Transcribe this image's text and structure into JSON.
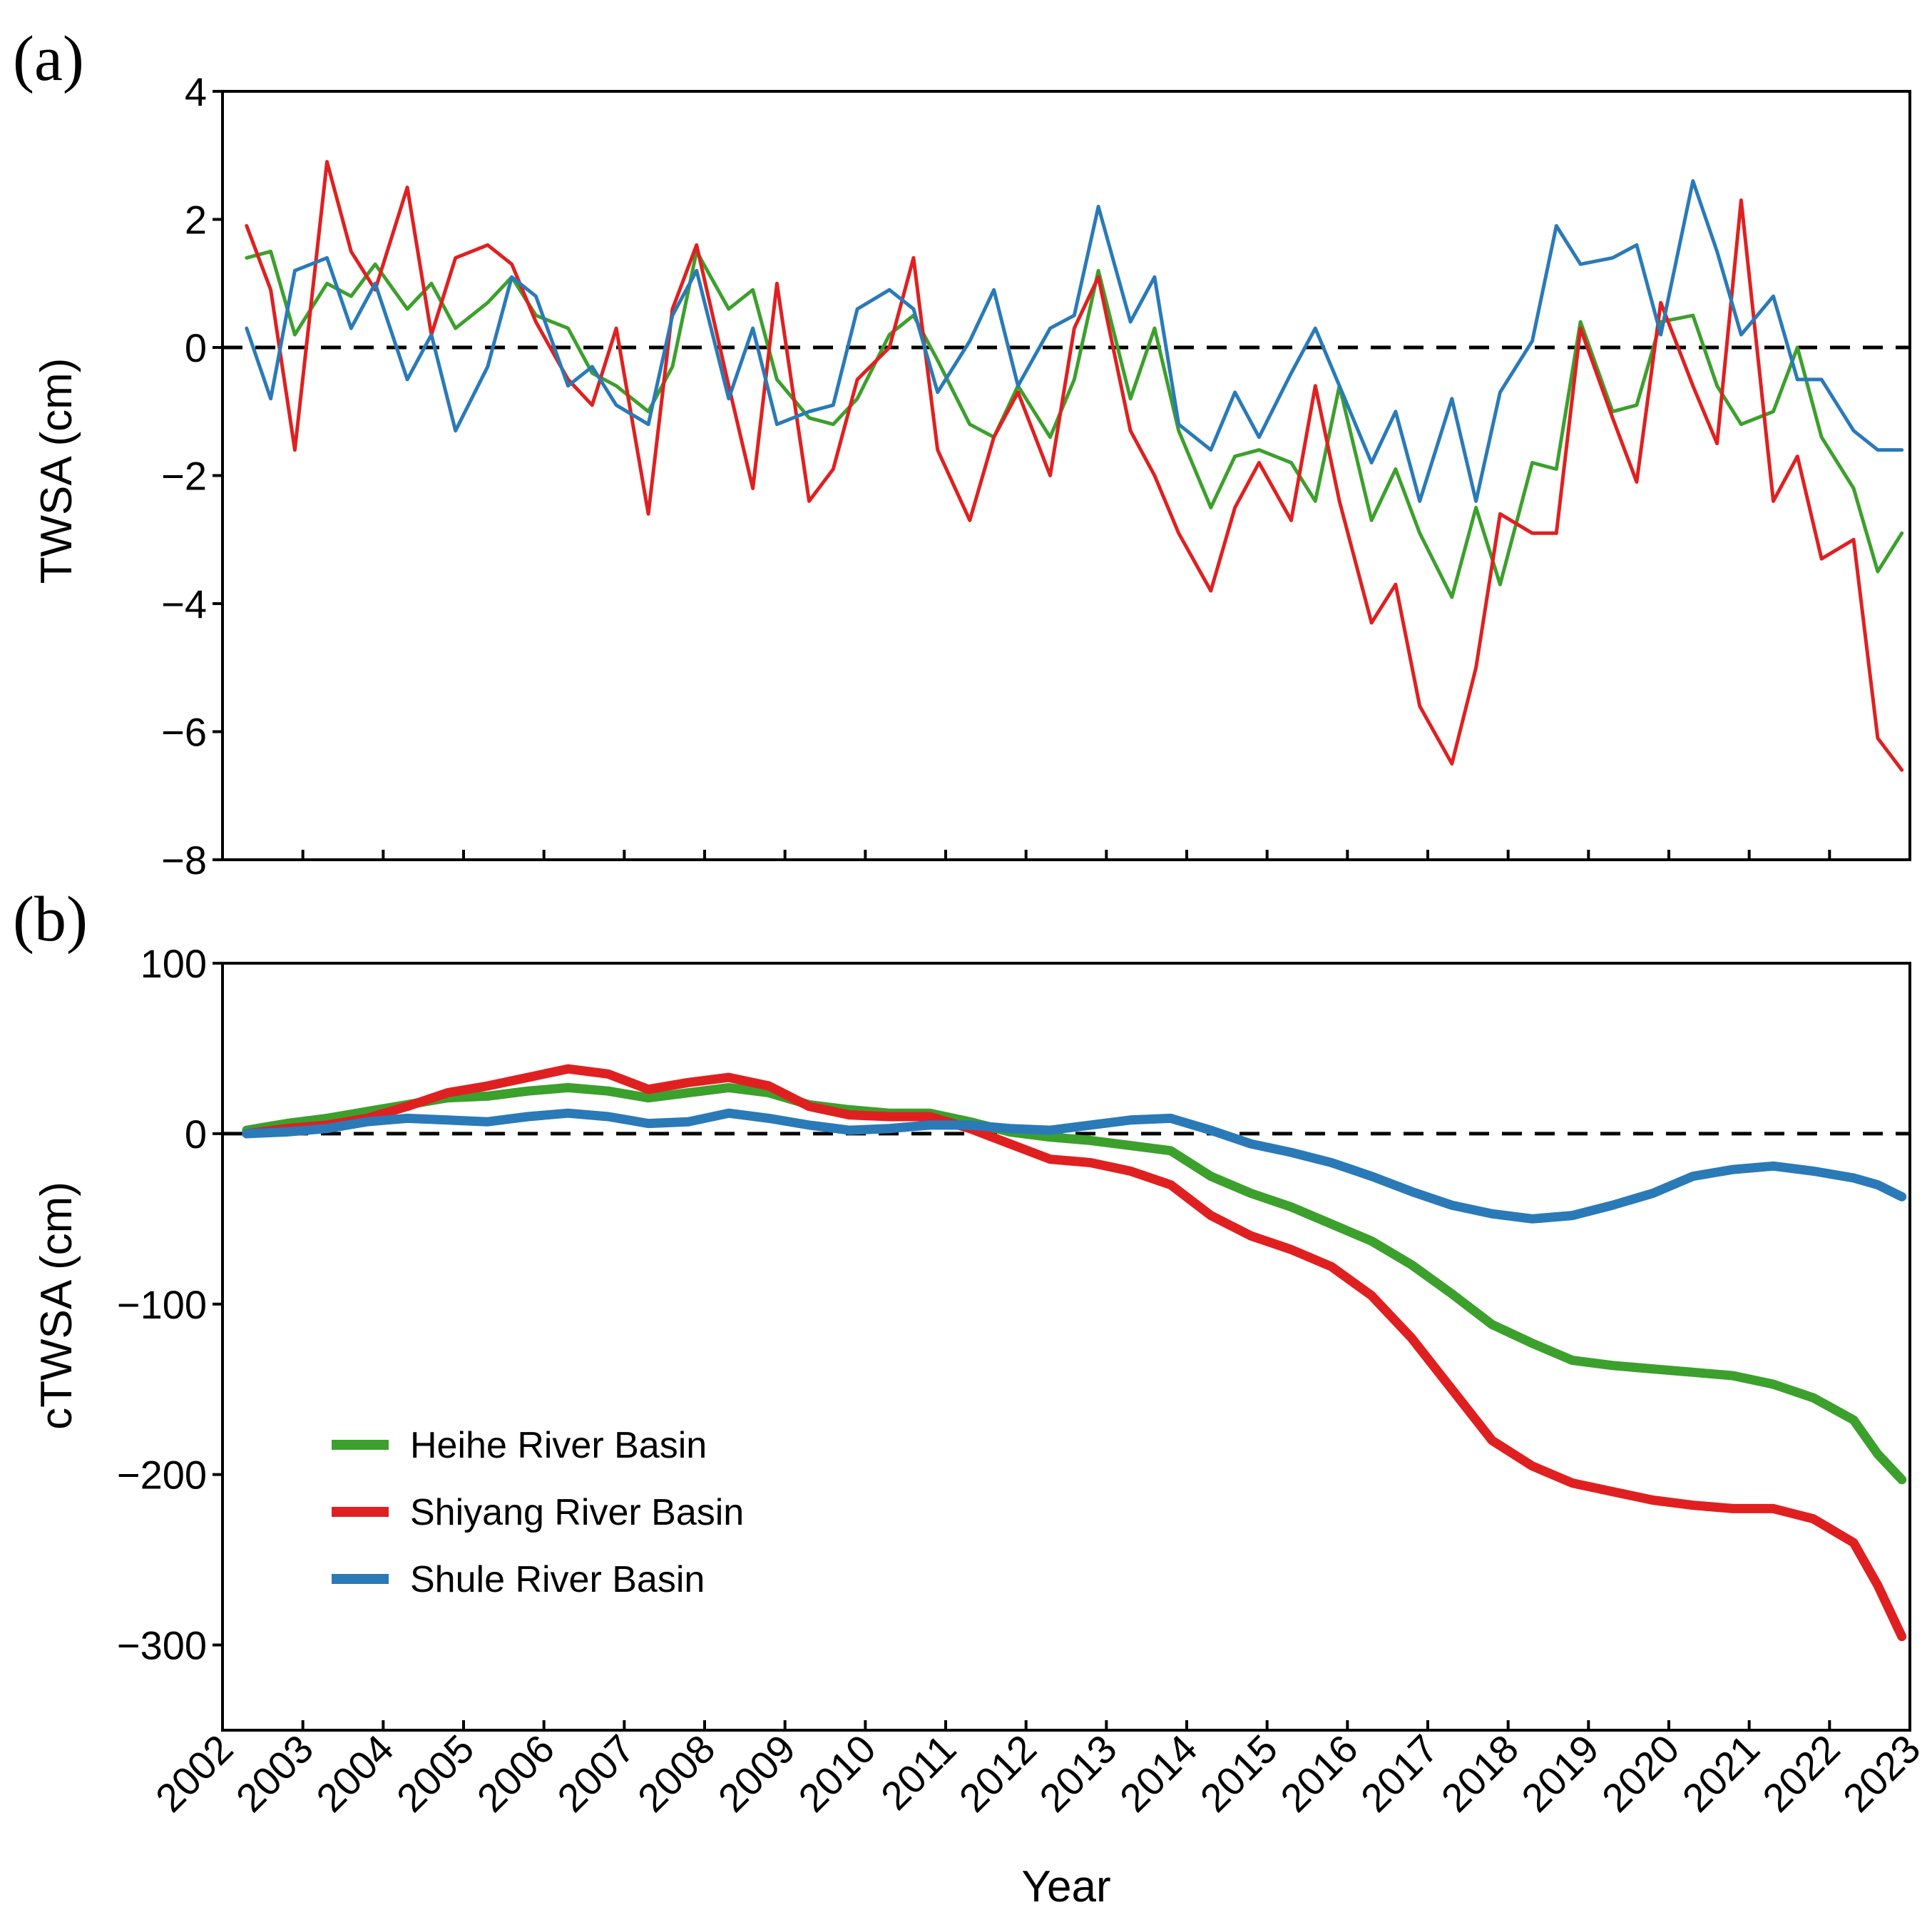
{
  "colors": {
    "heihe": "#3ca02c",
    "shiyang": "#e02020",
    "shule": "#2a7ab8",
    "axis": "#000000"
  },
  "chart_data": [
    {
      "id": "a",
      "type": "line",
      "panel_label": "(a)",
      "ylabel": "TWSA (cm)",
      "xlabel": "",
      "xlim": [
        2002,
        2023
      ],
      "ylim": [
        -8,
        4
      ],
      "yticks": [
        4,
        2,
        0,
        -2,
        -4,
        -6,
        -8
      ],
      "ytick_labels": [
        "4",
        "2",
        "0",
        "−2",
        "−4",
        "−6",
        "−8"
      ],
      "reference_line": 0,
      "series": [
        {
          "name": "Heihe River Basin",
          "color_key": "heihe",
          "x": [
            2002.3,
            2002.6,
            2002.9,
            2003.3,
            2003.6,
            2003.9,
            2004.3,
            2004.6,
            2004.9,
            2005.3,
            2005.6,
            2005.9,
            2006.3,
            2006.6,
            2006.9,
            2007.3,
            2007.6,
            2007.9,
            2008.3,
            2008.6,
            2008.9,
            2009.3,
            2009.6,
            2009.9,
            2010.3,
            2010.6,
            2010.9,
            2011.3,
            2011.6,
            2011.9,
            2012.3,
            2012.6,
            2012.9,
            2013.3,
            2013.6,
            2013.9,
            2014.3,
            2014.6,
            2014.9,
            2015.3,
            2015.6,
            2015.9,
            2016.3,
            2016.6,
            2016.9,
            2017.3,
            2017.6,
            2017.9,
            2018.3,
            2018.6,
            2018.9,
            2019.3,
            2019.6,
            2019.9,
            2020.3,
            2020.6,
            2020.9,
            2021.3,
            2021.6,
            2021.9,
            2022.3,
            2022.6,
            2022.9
          ],
          "y": [
            1.4,
            1.5,
            0.2,
            1.0,
            0.8,
            1.3,
            0.6,
            1.0,
            0.3,
            0.7,
            1.1,
            0.5,
            0.3,
            -0.4,
            -0.6,
            -1.0,
            -0.3,
            1.5,
            0.6,
            0.9,
            -0.5,
            -1.1,
            -1.2,
            -0.8,
            0.2,
            0.5,
            -0.2,
            -1.2,
            -1.4,
            -0.6,
            -1.4,
            -0.5,
            1.2,
            -0.8,
            0.3,
            -1.3,
            -2.5,
            -1.7,
            -1.6,
            -1.8,
            -2.4,
            -0.6,
            -2.7,
            -1.9,
            -2.9,
            -3.9,
            -2.5,
            -3.7,
            -1.8,
            -1.9,
            0.4,
            -1.0,
            -0.9,
            0.4,
            0.5,
            -0.6,
            -1.2,
            -1.0,
            0.0,
            -1.4,
            -2.2,
            -3.5,
            -2.9
          ]
        },
        {
          "name": "Shiyang River Basin",
          "color_key": "shiyang",
          "x": [
            2002.3,
            2002.6,
            2002.9,
            2003.3,
            2003.6,
            2003.9,
            2004.3,
            2004.6,
            2004.9,
            2005.3,
            2005.6,
            2005.9,
            2006.3,
            2006.6,
            2006.9,
            2007.3,
            2007.6,
            2007.9,
            2008.3,
            2008.6,
            2008.9,
            2009.3,
            2009.6,
            2009.9,
            2010.3,
            2010.6,
            2010.9,
            2011.3,
            2011.6,
            2011.9,
            2012.3,
            2012.6,
            2012.9,
            2013.3,
            2013.6,
            2013.9,
            2014.3,
            2014.6,
            2014.9,
            2015.3,
            2015.6,
            2015.9,
            2016.3,
            2016.6,
            2016.9,
            2017.3,
            2017.6,
            2017.9,
            2018.3,
            2018.6,
            2018.9,
            2019.3,
            2019.6,
            2019.9,
            2020.3,
            2020.6,
            2020.9,
            2021.3,
            2021.6,
            2021.9,
            2022.3,
            2022.6,
            2022.9
          ],
          "y": [
            1.9,
            0.9,
            -1.6,
            2.9,
            1.5,
            0.9,
            2.5,
            0.2,
            1.4,
            1.6,
            1.3,
            0.4,
            -0.5,
            -0.9,
            0.3,
            -2.6,
            0.6,
            1.6,
            -0.6,
            -2.2,
            1.0,
            -2.4,
            -1.9,
            -0.5,
            0.0,
            1.4,
            -1.6,
            -2.7,
            -1.4,
            -0.7,
            -2.0,
            0.3,
            1.1,
            -1.3,
            -2.0,
            -2.9,
            -3.8,
            -2.5,
            -1.8,
            -2.7,
            -0.6,
            -2.4,
            -4.3,
            -3.7,
            -5.6,
            -6.5,
            -5.0,
            -2.6,
            -2.9,
            -2.9,
            0.3,
            -1.1,
            -2.1,
            0.7,
            -0.6,
            -1.5,
            2.3,
            -2.4,
            -1.7,
            -3.3,
            -3.0,
            -6.1,
            -6.6
          ]
        },
        {
          "name": "Shule River Basin",
          "color_key": "shule",
          "x": [
            2002.3,
            2002.6,
            2002.9,
            2003.3,
            2003.6,
            2003.9,
            2004.3,
            2004.6,
            2004.9,
            2005.3,
            2005.6,
            2005.9,
            2006.3,
            2006.6,
            2006.9,
            2007.3,
            2007.6,
            2007.9,
            2008.3,
            2008.6,
            2008.9,
            2009.3,
            2009.6,
            2009.9,
            2010.3,
            2010.6,
            2010.9,
            2011.3,
            2011.6,
            2011.9,
            2012.3,
            2012.6,
            2012.9,
            2013.3,
            2013.6,
            2013.9,
            2014.3,
            2014.6,
            2014.9,
            2015.3,
            2015.6,
            2015.9,
            2016.3,
            2016.6,
            2016.9,
            2017.3,
            2017.6,
            2017.9,
            2018.3,
            2018.6,
            2018.9,
            2019.3,
            2019.6,
            2019.9,
            2020.3,
            2020.6,
            2020.9,
            2021.3,
            2021.6,
            2021.9,
            2022.3,
            2022.6,
            2022.9
          ],
          "y": [
            0.3,
            -0.8,
            1.2,
            1.4,
            0.3,
            1.0,
            -0.5,
            0.2,
            -1.3,
            -0.3,
            1.1,
            0.8,
            -0.6,
            -0.3,
            -0.9,
            -1.2,
            0.5,
            1.2,
            -0.8,
            0.3,
            -1.2,
            -1.0,
            -0.9,
            0.6,
            0.9,
            0.6,
            -0.7,
            0.1,
            0.9,
            -0.6,
            0.3,
            0.5,
            2.2,
            0.4,
            1.1,
            -1.2,
            -1.6,
            -0.7,
            -1.4,
            -0.4,
            0.3,
            -0.6,
            -1.8,
            -1.0,
            -2.4,
            -0.8,
            -2.4,
            -0.7,
            0.1,
            1.9,
            1.3,
            1.4,
            1.6,
            0.2,
            2.6,
            1.5,
            0.2,
            0.8,
            -0.5,
            -0.5,
            -1.3,
            -1.6,
            -1.6
          ]
        }
      ]
    },
    {
      "id": "b",
      "type": "line",
      "panel_label": "(b)",
      "ylabel": "cTWSA (cm)",
      "xlabel": "Year",
      "xlim": [
        2002,
        2023
      ],
      "ylim": [
        -350,
        100
      ],
      "yticks": [
        100,
        0,
        -100,
        -200,
        -300
      ],
      "ytick_labels": [
        "100",
        "0",
        "−100",
        "−200",
        "−300"
      ],
      "xticks": [
        2002,
        2003,
        2004,
        2005,
        2006,
        2007,
        2008,
        2009,
        2010,
        2011,
        2012,
        2013,
        2014,
        2015,
        2016,
        2017,
        2018,
        2019,
        2020,
        2021,
        2022,
        2023
      ],
      "xtick_labels": [
        "2002",
        "2003",
        "2004",
        "2005",
        "2006",
        "2007",
        "2008",
        "2009",
        "2010",
        "2011",
        "2012",
        "2013",
        "2014",
        "2015",
        "2016",
        "2017",
        "2018",
        "2019",
        "2020",
        "2021",
        "2022",
        "2023"
      ],
      "reference_line": 0,
      "legend": {
        "position": "lower-left",
        "entries": [
          "Heihe River Basin",
          "Shiyang River Basin",
          "Shule River Basin"
        ]
      },
      "series": [
        {
          "name": "Heihe River Basin",
          "color_key": "heihe",
          "x": [
            2002.3,
            2002.8,
            2003.3,
            2003.8,
            2004.3,
            2004.8,
            2005.3,
            2005.8,
            2006.3,
            2006.8,
            2007.3,
            2007.8,
            2008.3,
            2008.8,
            2009.3,
            2009.8,
            2010.3,
            2010.8,
            2011.3,
            2011.8,
            2012.3,
            2012.8,
            2013.3,
            2013.8,
            2014.3,
            2014.8,
            2015.3,
            2015.8,
            2016.3,
            2016.8,
            2017.3,
            2017.8,
            2018.3,
            2018.8,
            2019.3,
            2019.8,
            2020.3,
            2020.8,
            2021.3,
            2021.8,
            2022.3,
            2022.6,
            2022.9
          ],
          "y": [
            2,
            6,
            9,
            13,
            17,
            21,
            22,
            25,
            27,
            25,
            21,
            24,
            27,
            24,
            17,
            14,
            12,
            12,
            7,
            1,
            -2,
            -4,
            -7,
            -10,
            -25,
            -35,
            -43,
            -53,
            -63,
            -77,
            -94,
            -112,
            -123,
            -133,
            -136,
            -138,
            -140,
            -142,
            -147,
            -155,
            -168,
            -188,
            -203
          ]
        },
        {
          "name": "Shiyang River Basin",
          "color_key": "shiyang",
          "x": [
            2002.3,
            2002.8,
            2003.3,
            2003.8,
            2004.3,
            2004.8,
            2005.3,
            2005.8,
            2006.3,
            2006.8,
            2007.3,
            2007.8,
            2008.3,
            2008.8,
            2009.3,
            2009.8,
            2010.3,
            2010.8,
            2011.3,
            2011.8,
            2012.3,
            2012.8,
            2013.3,
            2013.8,
            2014.3,
            2014.8,
            2015.3,
            2015.8,
            2016.3,
            2016.8,
            2017.3,
            2017.8,
            2018.3,
            2018.8,
            2019.3,
            2019.8,
            2020.3,
            2020.8,
            2021.3,
            2021.8,
            2022.3,
            2022.6,
            2022.9
          ],
          "y": [
            0,
            3,
            5,
            9,
            16,
            24,
            28,
            33,
            38,
            35,
            26,
            30,
            33,
            28,
            16,
            11,
            10,
            10,
            3,
            -6,
            -15,
            -17,
            -22,
            -30,
            -48,
            -60,
            -68,
            -78,
            -95,
            -120,
            -150,
            -180,
            -195,
            -205,
            -210,
            -215,
            -218,
            -220,
            -220,
            -226,
            -240,
            -265,
            -295
          ]
        },
        {
          "name": "Shule River Basin",
          "color_key": "shule",
          "x": [
            2002.3,
            2002.8,
            2003.3,
            2003.8,
            2004.3,
            2004.8,
            2005.3,
            2005.8,
            2006.3,
            2006.8,
            2007.3,
            2007.8,
            2008.3,
            2008.8,
            2009.3,
            2009.8,
            2010.3,
            2010.8,
            2011.3,
            2011.8,
            2012.3,
            2012.8,
            2013.3,
            2013.8,
            2014.3,
            2014.8,
            2015.3,
            2015.8,
            2016.3,
            2016.8,
            2017.3,
            2017.8,
            2018.3,
            2018.8,
            2019.3,
            2019.8,
            2020.3,
            2020.8,
            2021.3,
            2021.8,
            2022.3,
            2022.6,
            2022.9
          ],
          "y": [
            0,
            1,
            3,
            7,
            9,
            8,
            7,
            10,
            12,
            10,
            6,
            7,
            12,
            9,
            5,
            2,
            3,
            5,
            5,
            3,
            2,
            5,
            8,
            9,
            2,
            -6,
            -11,
            -17,
            -25,
            -34,
            -42,
            -47,
            -50,
            -48,
            -42,
            -35,
            -25,
            -21,
            -19,
            -22,
            -26,
            -30,
            -37
          ]
        }
      ]
    }
  ]
}
